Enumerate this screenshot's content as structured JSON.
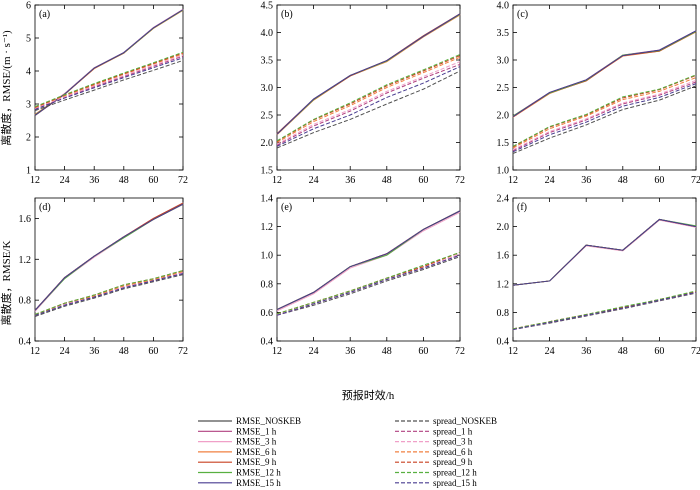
{
  "figure": {
    "ylabel_top": "离散度，RMSE/(m · s⁻¹)",
    "ylabel_bottom": "离散度，RMSE/K",
    "xlabel": "预报时效/h"
  },
  "colors": {
    "rmse": [
      "#505050",
      "#b04080",
      "#f0a0c8",
      "#f08040",
      "#c84020",
      "#58b040",
      "#483c90"
    ],
    "spread": [
      "#505050",
      "#b04080",
      "#f0a0c8",
      "#f08040",
      "#c84020",
      "#58b040",
      "#483c90"
    ]
  },
  "chart_data": [
    {
      "type": "line",
      "panel_label": "(a)",
      "x": [
        12,
        24,
        36,
        48,
        60,
        72
      ],
      "xlim": [
        12,
        72
      ],
      "ylim": [
        1,
        6
      ],
      "yticks": [
        1,
        2,
        3,
        4,
        5,
        6
      ],
      "series": [
        {
          "name": "RMSE_NOSKEB",
          "values": [
            2.65,
            3.3,
            4.08,
            4.55,
            5.3,
            5.85
          ]
        },
        {
          "name": "RMSE_1 h",
          "values": [
            2.67,
            3.31,
            4.09,
            4.56,
            5.31,
            5.86
          ]
        },
        {
          "name": "RMSE_3 h",
          "values": [
            2.68,
            3.32,
            4.1,
            4.56,
            5.32,
            5.87
          ]
        },
        {
          "name": "RMSE_6 h",
          "values": [
            2.69,
            3.3,
            4.07,
            4.55,
            5.29,
            5.84
          ]
        },
        {
          "name": "RMSE_9 h",
          "values": [
            2.66,
            3.29,
            4.08,
            4.54,
            5.3,
            5.86
          ]
        },
        {
          "name": "RMSE_12 h",
          "values": [
            2.67,
            3.3,
            4.09,
            4.55,
            5.3,
            5.85
          ]
        },
        {
          "name": "RMSE_15 h",
          "values": [
            2.66,
            3.3,
            4.09,
            4.56,
            5.31,
            5.86
          ]
        },
        {
          "name": "spread_NOSKEB",
          "values": [
            2.8,
            3.12,
            3.42,
            3.73,
            4.02,
            4.32
          ]
        },
        {
          "name": "spread_1 h",
          "values": [
            2.85,
            3.2,
            3.52,
            3.83,
            4.14,
            4.45
          ]
        },
        {
          "name": "spread_3 h",
          "values": [
            2.87,
            3.22,
            3.55,
            3.86,
            4.17,
            4.48
          ]
        },
        {
          "name": "spread_6 h",
          "values": [
            2.89,
            3.25,
            3.58,
            3.9,
            4.21,
            4.52
          ]
        },
        {
          "name": "spread_9 h",
          "values": [
            2.9,
            3.27,
            3.6,
            3.92,
            4.23,
            4.55
          ]
        },
        {
          "name": "spread_12 h",
          "values": [
            2.92,
            3.28,
            3.62,
            3.94,
            4.25,
            4.57
          ]
        },
        {
          "name": "spread_15 h",
          "values": [
            2.83,
            3.18,
            3.49,
            3.8,
            4.1,
            4.4
          ]
        }
      ]
    },
    {
      "type": "line",
      "panel_label": "(b)",
      "x": [
        12,
        24,
        36,
        48,
        60,
        72
      ],
      "xlim": [
        12,
        72
      ],
      "ylim": [
        1.5,
        4.5
      ],
      "yticks": [
        1.5,
        2.0,
        2.5,
        3.0,
        3.5,
        4.0,
        4.5
      ],
      "series": [
        {
          "name": "RMSE_NOSKEB",
          "values": [
            2.15,
            2.78,
            3.21,
            3.48,
            3.93,
            4.33
          ]
        },
        {
          "name": "RMSE_1 h",
          "values": [
            2.16,
            2.79,
            3.22,
            3.49,
            3.94,
            4.34
          ]
        },
        {
          "name": "RMSE_3 h",
          "values": [
            2.15,
            2.78,
            3.22,
            3.48,
            3.93,
            4.33
          ]
        },
        {
          "name": "RMSE_6 h",
          "values": [
            2.14,
            2.77,
            3.21,
            3.47,
            3.92,
            4.32
          ]
        },
        {
          "name": "RMSE_9 h",
          "values": [
            2.16,
            2.78,
            3.21,
            3.49,
            3.94,
            4.34
          ]
        },
        {
          "name": "RMSE_12 h",
          "values": [
            2.15,
            2.78,
            3.22,
            3.48,
            3.93,
            4.33
          ]
        },
        {
          "name": "RMSE_15 h",
          "values": [
            2.15,
            2.79,
            3.22,
            3.49,
            3.93,
            4.34
          ]
        },
        {
          "name": "spread_NOSKEB",
          "values": [
            1.9,
            2.18,
            2.42,
            2.7,
            2.97,
            3.3
          ]
        },
        {
          "name": "spread_1 h",
          "values": [
            1.95,
            2.3,
            2.57,
            2.9,
            3.17,
            3.42
          ]
        },
        {
          "name": "spread_3 h",
          "values": [
            1.97,
            2.33,
            2.6,
            2.93,
            3.2,
            3.47
          ]
        },
        {
          "name": "spread_6 h",
          "values": [
            2.0,
            2.38,
            2.67,
            3.0,
            3.27,
            3.55
          ]
        },
        {
          "name": "spread_9 h",
          "values": [
            2.02,
            2.41,
            2.7,
            3.03,
            3.3,
            3.58
          ]
        },
        {
          "name": "spread_12 h",
          "values": [
            2.03,
            2.42,
            2.72,
            3.05,
            3.32,
            3.6
          ]
        },
        {
          "name": "spread_15 h",
          "values": [
            1.93,
            2.25,
            2.5,
            2.82,
            3.08,
            3.38
          ]
        }
      ]
    },
    {
      "type": "line",
      "panel_label": "(c)",
      "x": [
        12,
        24,
        36,
        48,
        60,
        72
      ],
      "xlim": [
        12,
        72
      ],
      "ylim": [
        1.0,
        4.0
      ],
      "yticks": [
        1.0,
        1.5,
        2.0,
        2.5,
        3.0,
        3.5,
        4.0
      ],
      "series": [
        {
          "name": "RMSE_NOSKEB",
          "values": [
            1.97,
            2.4,
            2.63,
            3.08,
            3.17,
            3.52
          ]
        },
        {
          "name": "RMSE_1 h",
          "values": [
            1.98,
            2.41,
            2.64,
            3.09,
            3.18,
            3.53
          ]
        },
        {
          "name": "RMSE_3 h",
          "values": [
            1.97,
            2.4,
            2.64,
            3.08,
            3.17,
            3.52
          ]
        },
        {
          "name": "RMSE_6 h",
          "values": [
            1.96,
            2.39,
            2.63,
            3.07,
            3.16,
            3.51
          ]
        },
        {
          "name": "RMSE_9 h",
          "values": [
            1.97,
            2.4,
            2.62,
            3.08,
            3.16,
            3.52
          ]
        },
        {
          "name": "RMSE_12 h",
          "values": [
            1.98,
            2.4,
            2.63,
            3.09,
            3.17,
            3.52
          ]
        },
        {
          "name": "RMSE_15 h",
          "values": [
            1.97,
            2.41,
            2.64,
            3.08,
            3.18,
            3.53
          ]
        },
        {
          "name": "spread_NOSKEB",
          "values": [
            1.3,
            1.58,
            1.82,
            2.1,
            2.27,
            2.53
          ]
        },
        {
          "name": "spread_1 h",
          "values": [
            1.35,
            1.68,
            1.91,
            2.2,
            2.36,
            2.6
          ]
        },
        {
          "name": "spread_3 h",
          "values": [
            1.37,
            1.7,
            1.93,
            2.22,
            2.38,
            2.63
          ]
        },
        {
          "name": "spread_6 h",
          "values": [
            1.4,
            1.75,
            1.98,
            2.28,
            2.43,
            2.68
          ]
        },
        {
          "name": "spread_9 h",
          "values": [
            1.42,
            1.78,
            2.0,
            2.31,
            2.46,
            2.72
          ]
        },
        {
          "name": "spread_12 h",
          "values": [
            1.43,
            1.79,
            2.01,
            2.33,
            2.47,
            2.73
          ]
        },
        {
          "name": "spread_15 h",
          "values": [
            1.33,
            1.64,
            1.87,
            2.16,
            2.32,
            2.57
          ]
        }
      ]
    },
    {
      "type": "line",
      "panel_label": "(d)",
      "x": [
        12,
        24,
        36,
        48,
        60,
        72
      ],
      "xlim": [
        12,
        72
      ],
      "ylim": [
        0.4,
        1.8
      ],
      "yticks": [
        0.4,
        0.8,
        1.2,
        1.6
      ],
      "series": [
        {
          "name": "RMSE_NOSKEB",
          "values": [
            0.7,
            1.02,
            1.23,
            1.42,
            1.59,
            1.74
          ]
        },
        {
          "name": "RMSE_1 h",
          "values": [
            0.7,
            1.02,
            1.23,
            1.42,
            1.6,
            1.75
          ]
        },
        {
          "name": "RMSE_3 h",
          "values": [
            0.69,
            1.01,
            1.22,
            1.41,
            1.59,
            1.74
          ]
        },
        {
          "name": "RMSE_6 h",
          "values": [
            0.7,
            1.02,
            1.23,
            1.42,
            1.59,
            1.74
          ]
        },
        {
          "name": "RMSE_9 h",
          "values": [
            0.7,
            1.02,
            1.23,
            1.42,
            1.6,
            1.75
          ]
        },
        {
          "name": "RMSE_12 h",
          "values": [
            0.7,
            1.01,
            1.23,
            1.41,
            1.59,
            1.74
          ]
        },
        {
          "name": "RMSE_15 h",
          "values": [
            0.7,
            1.02,
            1.23,
            1.42,
            1.59,
            1.74
          ]
        },
        {
          "name": "spread_NOSKEB",
          "values": [
            0.64,
            0.74,
            0.82,
            0.91,
            0.98,
            1.05
          ]
        },
        {
          "name": "spread_1 h",
          "values": [
            0.65,
            0.76,
            0.83,
            0.93,
            0.99,
            1.07
          ]
        },
        {
          "name": "spread_3 h",
          "values": [
            0.65,
            0.76,
            0.84,
            0.93,
            1.0,
            1.07
          ]
        },
        {
          "name": "spread_6 h",
          "values": [
            0.65,
            0.77,
            0.84,
            0.94,
            1.0,
            1.08
          ]
        },
        {
          "name": "spread_9 h",
          "values": [
            0.66,
            0.77,
            0.85,
            0.95,
            1.01,
            1.09
          ]
        },
        {
          "name": "spread_12 h",
          "values": [
            0.66,
            0.77,
            0.85,
            0.95,
            1.01,
            1.09
          ]
        },
        {
          "name": "spread_15 h",
          "values": [
            0.65,
            0.75,
            0.83,
            0.92,
            0.99,
            1.06
          ]
        }
      ]
    },
    {
      "type": "line",
      "panel_label": "(e)",
      "x": [
        12,
        24,
        36,
        48,
        60,
        72
      ],
      "xlim": [
        12,
        72
      ],
      "ylim": [
        0.4,
        1.4
      ],
      "yticks": [
        0.4,
        0.6,
        0.8,
        1.0,
        1.2,
        1.4
      ],
      "series": [
        {
          "name": "RMSE_NOSKEB",
          "values": [
            0.62,
            0.74,
            0.92,
            1.01,
            1.18,
            1.31
          ]
        },
        {
          "name": "RMSE_1 h",
          "values": [
            0.62,
            0.74,
            0.92,
            1.01,
            1.18,
            1.31
          ]
        },
        {
          "name": "RMSE_3 h",
          "values": [
            0.61,
            0.73,
            0.91,
            1.0,
            1.17,
            1.3
          ]
        },
        {
          "name": "RMSE_6 h",
          "values": [
            0.62,
            0.74,
            0.92,
            1.01,
            1.18,
            1.31
          ]
        },
        {
          "name": "RMSE_9 h",
          "values": [
            0.62,
            0.74,
            0.92,
            1.01,
            1.18,
            1.31
          ]
        },
        {
          "name": "RMSE_12 h",
          "values": [
            0.62,
            0.74,
            0.92,
            1.0,
            1.18,
            1.31
          ]
        },
        {
          "name": "RMSE_15 h",
          "values": [
            0.62,
            0.74,
            0.92,
            1.01,
            1.18,
            1.31
          ]
        },
        {
          "name": "spread_NOSKEB",
          "values": [
            0.58,
            0.65,
            0.73,
            0.82,
            0.9,
            0.99
          ]
        },
        {
          "name": "spread_1 h",
          "values": [
            0.58,
            0.66,
            0.74,
            0.83,
            0.91,
            1.0
          ]
        },
        {
          "name": "spread_3 h",
          "values": [
            0.58,
            0.66,
            0.74,
            0.83,
            0.91,
            1.01
          ]
        },
        {
          "name": "spread_6 h",
          "values": [
            0.59,
            0.67,
            0.75,
            0.84,
            0.92,
            1.02
          ]
        },
        {
          "name": "spread_9 h",
          "values": [
            0.59,
            0.67,
            0.75,
            0.84,
            0.92,
            1.02
          ]
        },
        {
          "name": "spread_12 h",
          "values": [
            0.59,
            0.67,
            0.75,
            0.84,
            0.93,
            1.02
          ]
        },
        {
          "name": "spread_15 h",
          "values": [
            0.58,
            0.66,
            0.74,
            0.83,
            0.91,
            1.0
          ]
        }
      ]
    },
    {
      "type": "line",
      "panel_label": "(f)",
      "x": [
        12,
        24,
        36,
        48,
        60,
        72
      ],
      "xlim": [
        12,
        72
      ],
      "ylim": [
        0.4,
        2.4
      ],
      "yticks": [
        0.4,
        0.8,
        1.2,
        1.6,
        2.0,
        2.4
      ],
      "series": [
        {
          "name": "RMSE_NOSKEB",
          "values": [
            1.18,
            1.24,
            1.74,
            1.67,
            2.1,
            2.0
          ]
        },
        {
          "name": "RMSE_1 h",
          "values": [
            1.18,
            1.24,
            1.74,
            1.67,
            2.1,
            2.0
          ]
        },
        {
          "name": "RMSE_3 h",
          "values": [
            1.18,
            1.24,
            1.73,
            1.66,
            2.09,
            1.99
          ]
        },
        {
          "name": "RMSE_6 h",
          "values": [
            1.18,
            1.24,
            1.74,
            1.67,
            2.1,
            2.0
          ]
        },
        {
          "name": "RMSE_9 h",
          "values": [
            1.18,
            1.24,
            1.74,
            1.67,
            2.1,
            2.0
          ]
        },
        {
          "name": "RMSE_12 h",
          "values": [
            1.18,
            1.24,
            1.74,
            1.67,
            2.1,
            2.01
          ]
        },
        {
          "name": "RMSE_15 h",
          "values": [
            1.18,
            1.24,
            1.74,
            1.67,
            2.1,
            2.0
          ]
        },
        {
          "name": "spread_NOSKEB",
          "values": [
            0.56,
            0.65,
            0.75,
            0.85,
            0.96,
            1.07
          ]
        },
        {
          "name": "spread_1 h",
          "values": [
            0.56,
            0.66,
            0.76,
            0.86,
            0.97,
            1.08
          ]
        },
        {
          "name": "spread_3 h",
          "values": [
            0.56,
            0.66,
            0.76,
            0.86,
            0.97,
            1.08
          ]
        },
        {
          "name": "spread_6 h",
          "values": [
            0.57,
            0.67,
            0.77,
            0.87,
            0.98,
            1.09
          ]
        },
        {
          "name": "spread_9 h",
          "values": [
            0.57,
            0.67,
            0.77,
            0.87,
            0.98,
            1.09
          ]
        },
        {
          "name": "spread_12 h",
          "values": [
            0.57,
            0.67,
            0.77,
            0.88,
            0.98,
            1.1
          ]
        },
        {
          "name": "spread_15 h",
          "values": [
            0.56,
            0.66,
            0.76,
            0.86,
            0.97,
            1.08
          ]
        }
      ]
    }
  ]
}
